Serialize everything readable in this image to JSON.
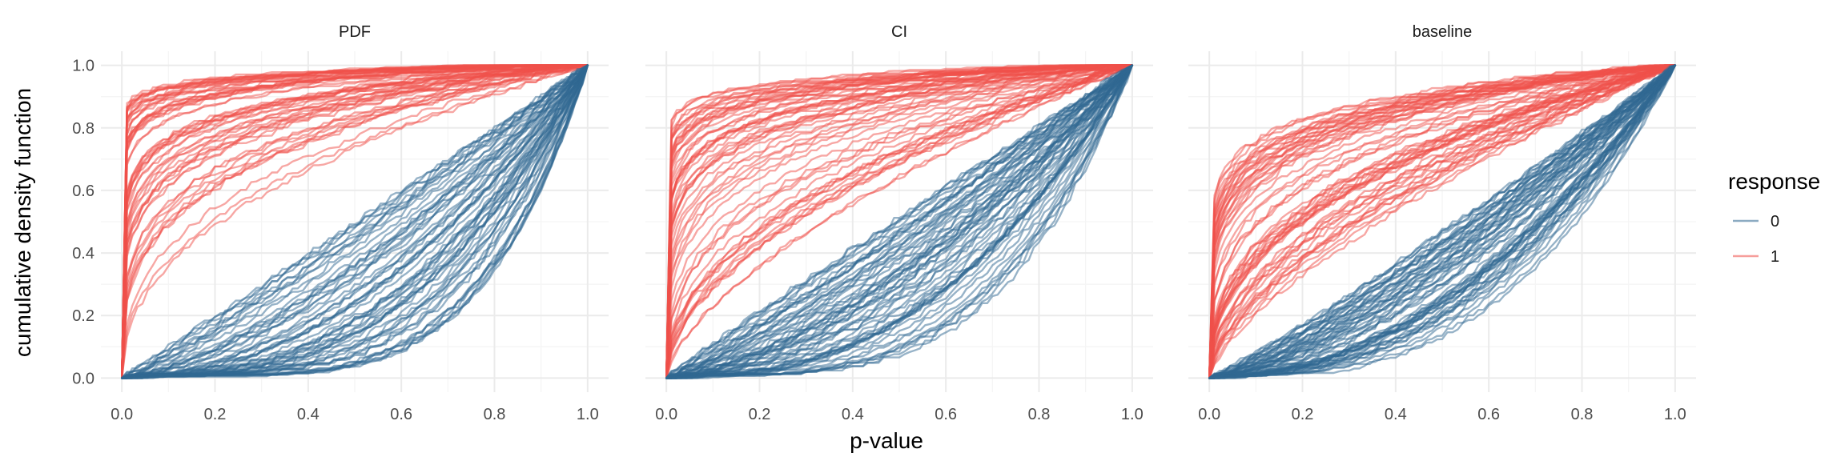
{
  "chart_data": {
    "type": "line",
    "xlabel": "p-value",
    "ylabel": "cumulative density function",
    "xlim": [
      0,
      1
    ],
    "ylim": [
      0,
      1
    ],
    "x_ticks": [
      "0.0",
      "0.2",
      "0.4",
      "0.6",
      "0.8",
      "1.0"
    ],
    "y_ticks": [
      "0.0",
      "0.2",
      "0.4",
      "0.6",
      "0.8",
      "1.0"
    ],
    "grid": true,
    "legend": {
      "title": "response",
      "position": "right",
      "entries": [
        {
          "label": "0",
          "color": "#2f6891"
        },
        {
          "label": "1",
          "color": "#f0504a"
        }
      ]
    },
    "panels": [
      {
        "title": "PDF",
        "series": [
          {
            "name": "1",
            "color": "#f0504a",
            "line_count": 60,
            "shape_range": [
              0.03,
              0.45
            ],
            "typical_curve": {
              "x": [
                0,
                0.1,
                0.2,
                0.4,
                0.6,
                0.8,
                1.0
              ],
              "y": [
                0,
                0.72,
                0.86,
                0.95,
                0.98,
                0.995,
                1.0
              ]
            }
          },
          {
            "name": "0",
            "color": "#2f6891",
            "line_count": 60,
            "shape_range": [
              1.0,
              4.8
            ],
            "typical_curve": {
              "x": [
                0,
                0.2,
                0.4,
                0.6,
                0.8,
                1.0
              ],
              "y": [
                0,
                0.26,
                0.52,
                0.72,
                0.87,
                1.0
              ]
            }
          }
        ]
      },
      {
        "title": "CI",
        "series": [
          {
            "name": "1",
            "color": "#f0504a",
            "line_count": 60,
            "shape_range": [
              0.04,
              0.65
            ],
            "typical_curve": {
              "x": [
                0,
                0.1,
                0.2,
                0.4,
                0.6,
                0.8,
                1.0
              ],
              "y": [
                0,
                0.6,
                0.75,
                0.89,
                0.96,
                0.99,
                1.0
              ]
            }
          },
          {
            "name": "0",
            "color": "#2f6891",
            "line_count": 60,
            "shape_range": [
              0.9,
              4.0
            ],
            "typical_curve": {
              "x": [
                0,
                0.2,
                0.4,
                0.6,
                0.8,
                1.0
              ],
              "y": [
                0,
                0.2,
                0.42,
                0.64,
                0.84,
                1.0
              ]
            }
          }
        ]
      },
      {
        "title": "baseline",
        "series": [
          {
            "name": "1",
            "color": "#f0504a",
            "line_count": 60,
            "shape_range": [
              0.12,
              0.7
            ],
            "typical_curve": {
              "x": [
                0,
                0.1,
                0.2,
                0.4,
                0.6,
                0.8,
                1.0
              ],
              "y": [
                0,
                0.44,
                0.62,
                0.82,
                0.93,
                0.98,
                1.0
              ]
            }
          },
          {
            "name": "0",
            "color": "#2f6891",
            "line_count": 60,
            "shape_range": [
              1.1,
              3.0
            ],
            "typical_curve": {
              "x": [
                0,
                0.2,
                0.4,
                0.6,
                0.8,
                1.0
              ],
              "y": [
                0,
                0.14,
                0.33,
                0.55,
                0.78,
                1.0
              ]
            }
          }
        ]
      }
    ]
  }
}
